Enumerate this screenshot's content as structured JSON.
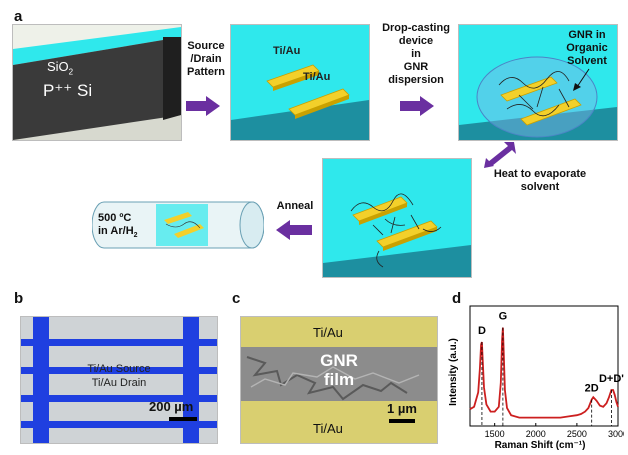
{
  "figure": {
    "panel_labels": {
      "a": "a",
      "b": "b",
      "c": "c",
      "d": "d"
    },
    "step1": {
      "oxide_label": "SiO",
      "oxide_sub": "2",
      "substrate_label": "P⁺⁺ Si"
    },
    "arrow1_label_lines": [
      "Source",
      "/Drain",
      "Pattern"
    ],
    "step2": {
      "pad_top": "Ti/Au",
      "pad_bottom": "Ti/Au"
    },
    "arrow2_label_lines": [
      "Drop-casting",
      "device",
      "in",
      "GNR",
      "dispersion"
    ],
    "step3": {
      "callout_lines": [
        "GNR in",
        "Organic",
        "Solvent"
      ]
    },
    "arrow3_label_lines": [
      "Heat to evaporate",
      "solvent"
    ],
    "arrow4_label": "Anneal",
    "anneal_tube": {
      "line1": "500 ºC",
      "line2_main": "in Ar/H",
      "line2_sub": "2"
    },
    "panel_b": {
      "label1": "Ti/Au Source",
      "label2": "Ti/Au Drain",
      "scale": "200 µm"
    },
    "panel_c": {
      "top": "Ti/Au",
      "center1": "GNR",
      "center2": "film",
      "bottom": "Ti/Au",
      "scale": "1 µm"
    },
    "colors": {
      "cyan": "#2fe8ec",
      "gold": "#f3d02a",
      "arrow": "#6a2fa0",
      "blue": "#1f3fe0",
      "raman": "#cc1f1f"
    }
  },
  "chart_data": {
    "type": "line",
    "xlabel": "Raman Shift (cm⁻¹)",
    "ylabel": "Intensity (a.u.)",
    "xlim": [
      1200,
      3000
    ],
    "xticks": [
      1500,
      2000,
      2500,
      3000
    ],
    "series": [
      {
        "x": [
          1200,
          1250,
          1300,
          1320,
          1335,
          1345,
          1355,
          1370,
          1400,
          1450,
          1500,
          1550,
          1575,
          1590,
          1600,
          1610,
          1625,
          1650,
          1700,
          1800,
          1900,
          2000,
          2100,
          2200,
          2300,
          2400,
          2500,
          2550,
          2600,
          2640,
          2680,
          2700,
          2740,
          2780,
          2820,
          2860,
          2890,
          2920,
          2940,
          2960,
          2980,
          3000
        ],
        "values": [
          0.14,
          0.16,
          0.28,
          0.48,
          0.68,
          0.7,
          0.55,
          0.32,
          0.18,
          0.12,
          0.12,
          0.16,
          0.36,
          0.72,
          0.82,
          0.62,
          0.3,
          0.15,
          0.09,
          0.07,
          0.07,
          0.07,
          0.07,
          0.07,
          0.07,
          0.08,
          0.09,
          0.1,
          0.12,
          0.15,
          0.22,
          0.24,
          0.21,
          0.17,
          0.16,
          0.19,
          0.24,
          0.3,
          0.3,
          0.26,
          0.2,
          0.16
        ]
      }
    ],
    "annotations": [
      {
        "text": "D",
        "x": 1345
      },
      {
        "text": "G",
        "x": 1600
      },
      {
        "text": "2D",
        "x": 2680
      },
      {
        "text": "D+D'",
        "x": 2920
      }
    ]
  }
}
